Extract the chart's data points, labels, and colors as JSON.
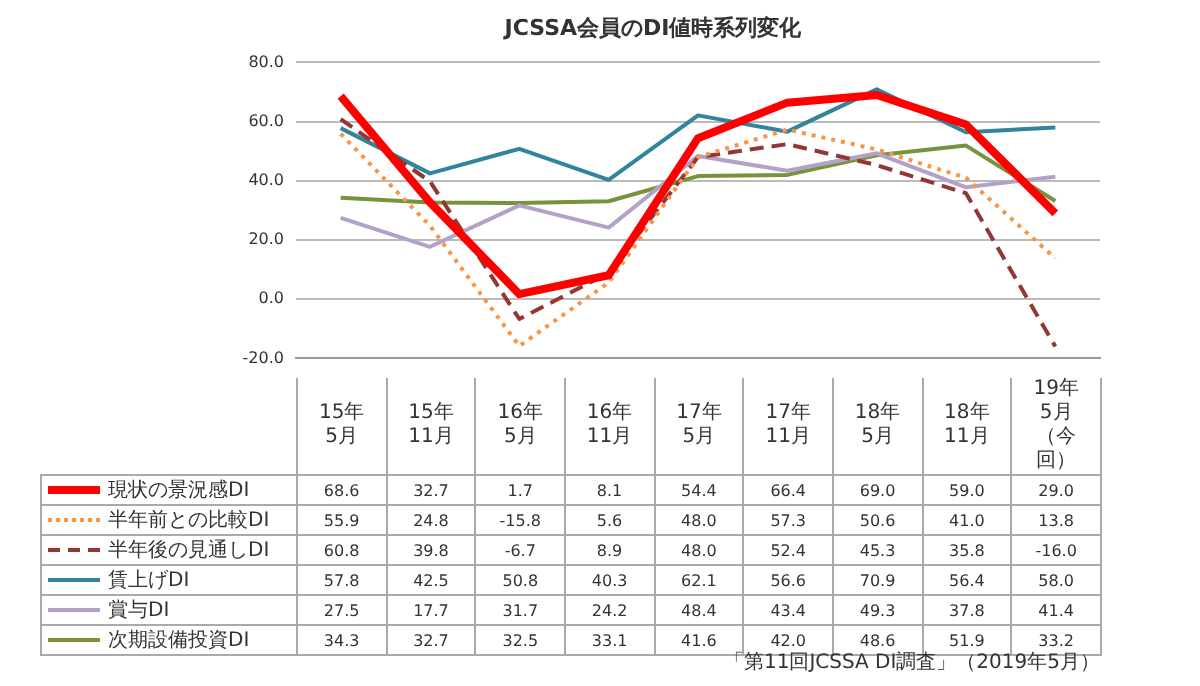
{
  "chart_data": {
    "type": "line",
    "title": "JCSSA会員のDI値時系列変化",
    "categories": [
      "15年5月",
      "15年11月",
      "16年5月",
      "16年11月",
      "17年5月",
      "17年11月",
      "18年5月",
      "18年11月",
      "19年5月（今回）"
    ],
    "series": [
      {
        "name": "現状の景況感DI",
        "color": "#ff0000",
        "line_style": "solid",
        "values": [
          68.6,
          32.7,
          1.7,
          8.1,
          54.4,
          66.4,
          69.0,
          59.0,
          29.0
        ],
        "value_labels": [
          "68.6",
          "32.7",
          "1.7",
          "8.1",
          "54.4",
          "66.4",
          "69.0",
          "59.0",
          "29.0"
        ]
      },
      {
        "name": "半年前との比較DI",
        "color": "#f79646",
        "line_style": "dotted",
        "values": [
          55.9,
          24.8,
          -15.8,
          5.6,
          48.0,
          57.3,
          50.6,
          41.0,
          13.8
        ],
        "value_labels": [
          "55.9",
          "24.8",
          "-15.8",
          "5.6",
          "48.0",
          "57.3",
          "50.6",
          "41.0",
          "13.8"
        ]
      },
      {
        "name": "半年後の見通しDI",
        "color": "#943634",
        "line_style": "dashed",
        "values": [
          60.8,
          39.8,
          -6.7,
          8.9,
          48.0,
          52.4,
          45.3,
          35.8,
          -16.0
        ],
        "value_labels": [
          "60.8",
          "39.8",
          "-6.7",
          "8.9",
          "48.0",
          "52.4",
          "45.3",
          "35.8",
          "-16.0"
        ]
      },
      {
        "name": "賃上げDI",
        "color": "#31849b",
        "line_style": "solid",
        "values": [
          57.8,
          42.5,
          50.8,
          40.3,
          62.1,
          56.6,
          70.9,
          56.4,
          58.0
        ],
        "value_labels": [
          "57.8",
          "42.5",
          "50.8",
          "40.3",
          "62.1",
          "56.6",
          "70.9",
          "56.4",
          "58.0"
        ]
      },
      {
        "name": "賞与DI",
        "color": "#b3a2c7",
        "line_style": "solid",
        "values": [
          27.5,
          17.7,
          31.7,
          24.2,
          48.4,
          43.4,
          49.3,
          37.8,
          41.4
        ],
        "value_labels": [
          "27.5",
          "17.7",
          "31.7",
          "24.2",
          "48.4",
          "43.4",
          "49.3",
          "37.8",
          "41.4"
        ]
      },
      {
        "name": "次期設備投資DI",
        "color": "#77933c",
        "line_style": "solid",
        "values": [
          34.3,
          32.7,
          32.5,
          33.1,
          41.6,
          42.0,
          48.6,
          51.9,
          33.2
        ],
        "value_labels": [
          "34.3",
          "32.7",
          "32.5",
          "33.1",
          "41.6",
          "42.0",
          "48.6",
          "51.9",
          "33.2"
        ]
      }
    ],
    "ylim": [
      -20,
      80
    ],
    "yticks": [
      {
        "value": -20,
        "label": "-20.0"
      },
      {
        "value": 0,
        "label": "0.0"
      },
      {
        "value": 20,
        "label": "20.0"
      },
      {
        "value": 40,
        "label": "40.0"
      },
      {
        "value": 60,
        "label": "60.0"
      },
      {
        "value": 80,
        "label": "80.0"
      }
    ],
    "grid": "y",
    "marker": "none",
    "legend": "bottom left",
    "annotations": [
      "「第11回JCSSA DI調査」（2019年5月）"
    ]
  }
}
